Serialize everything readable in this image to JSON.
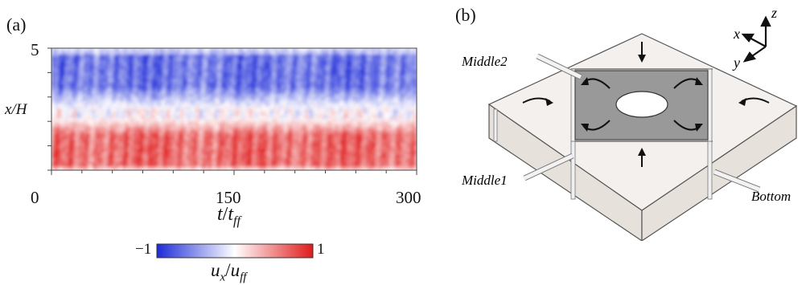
{
  "panel_a": {
    "label": "(a)",
    "chart_data": {
      "type": "heatmap",
      "x_ticks": [
        "0",
        "150",
        "300"
      ],
      "x_range": [
        0,
        300
      ],
      "y_ticks": [
        "5",
        "0"
      ],
      "y_range": [
        0,
        5
      ],
      "xlabel": "t/t_ff",
      "ylabel": "x/H",
      "colorbar": {
        "min_label": "−1",
        "max_label": "1",
        "label": "u_x/u_ff",
        "range": [
          -1,
          1
        ]
      },
      "colors": {
        "negative": "#2233dd",
        "zero": "#ffffff",
        "positive": "#dd2222"
      }
    },
    "xlabel_parts": {
      "t": "t",
      "slash": "/",
      "t2": "t",
      "sub": "ff"
    },
    "ylabel_text": "x/H",
    "cbar_label_parts": {
      "u": "u",
      "sub_x": "x",
      "slash": "/",
      "u2": "u",
      "sub_ff": "ff"
    }
  },
  "panel_b": {
    "label": "(b)",
    "axes": {
      "z": "z",
      "x": "x",
      "y": "y"
    },
    "labels": {
      "middle2": "Middle2",
      "middle1": "Middle1",
      "bottom": "Bottom"
    },
    "colors": {
      "top_panel": "#999999",
      "side_face": "#e7e1dc",
      "top_face": "#f3f0ed",
      "outline": "#555555"
    }
  }
}
